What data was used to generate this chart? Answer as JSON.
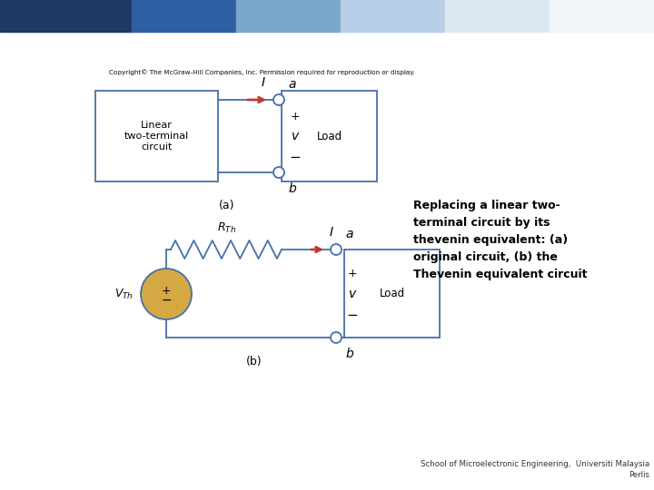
{
  "bg_color": "#ffffff",
  "header_colors": [
    "#1f3864",
    "#2e5fa3",
    "#7ba7cc",
    "#b8cfe8",
    "#dce8f0",
    "#f0f5fa",
    "#ffffff"
  ],
  "corner_square_color": "#1f3864",
  "copyright_text": "Copyright© The McGraw-Hill Companies, Inc. Permission required for reproduction or display.",
  "box_color": "#4472a8",
  "arrow_color": "#c0392b",
  "source_color": "#d4a843",
  "text_color": "#000000",
  "description_lines": [
    "Replacing a linear two-",
    "terminal circuit by its",
    "thevenin equivalent: (a)",
    "original circuit, (b) the",
    "Thevenin equivalent circuit"
  ],
  "footer_text": "School of Microelectronic Engineering,  Universiti Malaysia\nPerlis"
}
